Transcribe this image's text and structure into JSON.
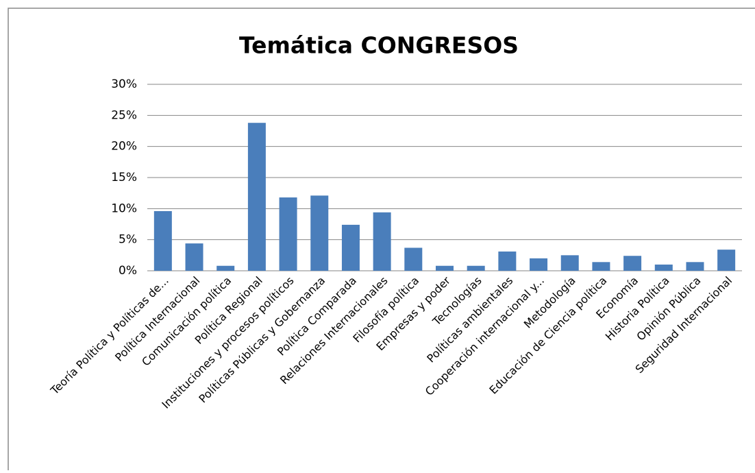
{
  "chart_data": {
    "type": "bar",
    "title": "Temática CONGRESOS",
    "categories": [
      "Teoría Política y Políticas de...",
      "Política Internacional",
      "Comunicación política",
      "Política Regional",
      "Instituciones y procesos políticos",
      "Políticas Públicas y Gobernanza",
      "Política Comparada",
      "Relaciones Internacionales",
      "Filosofía política",
      "Empresas y poder",
      "Tecnologías",
      "Políticas ambientales",
      "Cooperación internacional y...",
      "Metodología",
      "Educación de Ciencia política",
      "Economía",
      "Historia Política",
      "Opinión Pública",
      "Seguridad Internacional"
    ],
    "values": [
      9.6,
      4.4,
      0.8,
      23.8,
      11.8,
      12.1,
      7.4,
      9.4,
      3.7,
      0.8,
      0.8,
      3.1,
      2.0,
      2.5,
      1.4,
      2.4,
      1.0,
      1.4,
      3.4
    ],
    "color": "#4a7ebb",
    "ylim": [
      0,
      30
    ],
    "yticks": [
      {
        "value": 0,
        "label": "0%"
      },
      {
        "value": 5,
        "label": "5%"
      },
      {
        "value": 10,
        "label": "10%"
      },
      {
        "value": 15,
        "label": "15%"
      },
      {
        "value": 20,
        "label": "20%"
      },
      {
        "value": 25,
        "label": "25%"
      },
      {
        "value": 30,
        "label": "30%"
      }
    ],
    "grid": true
  }
}
